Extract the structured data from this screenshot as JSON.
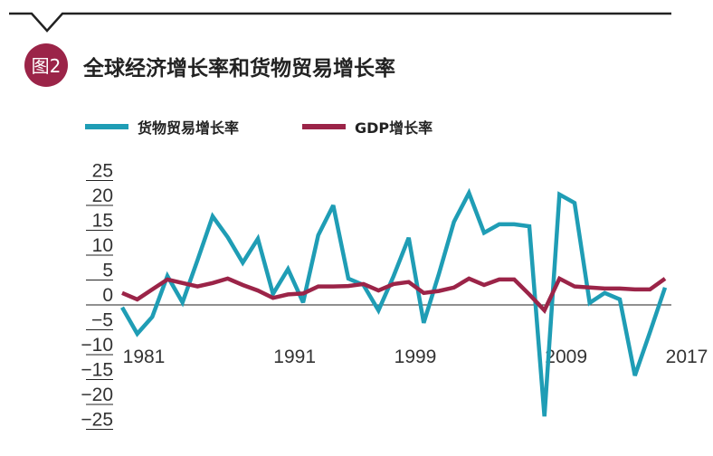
{
  "figure": {
    "badge": "图2",
    "title": "全球经济增长率和货物贸易增长率"
  },
  "chart_data": {
    "type": "line",
    "title": "全球经济增长率和货物贸易增长率",
    "xlabel": "",
    "ylabel": "",
    "x": [
      1981,
      1982,
      1983,
      1984,
      1985,
      1986,
      1987,
      1988,
      1989,
      1990,
      1991,
      1992,
      1993,
      1994,
      1995,
      1996,
      1997,
      1998,
      1999,
      2000,
      2001,
      2002,
      2003,
      2004,
      2005,
      2006,
      2007,
      2008,
      2009,
      2010,
      2011,
      2012,
      2013,
      2014,
      2015,
      2016,
      2017
    ],
    "xticks": [
      "1981",
      "1991",
      "1999",
      "2009",
      "2017"
    ],
    "xtick_values": [
      1981,
      1991,
      1999,
      2009,
      2017
    ],
    "yticks": [
      "25",
      "20",
      "15",
      "10",
      "5",
      "0",
      "−5",
      "−10",
      "−15",
      "−20",
      "−25"
    ],
    "ytick_values": [
      25,
      20,
      15,
      10,
      5,
      0,
      -5,
      -10,
      -15,
      -20,
      -25
    ],
    "ylim": [
      -25,
      25
    ],
    "grid": false,
    "legend_position": "top",
    "series": [
      {
        "name": "货物贸易增长率",
        "color": "#1f9db5",
        "values": [
          -0.5,
          -5.8,
          -2.4,
          5.8,
          0.5,
          9,
          17.8,
          13.6,
          8.5,
          13.3,
          2.2,
          7.2,
          0.5,
          14,
          20,
          5.3,
          4,
          -1.1,
          5.8,
          13.5,
          -3.6,
          6.2,
          16.7,
          22.5,
          14.5,
          16.2,
          16.2,
          15.8,
          -22.4,
          22.2,
          20.5,
          0.4,
          2.4,
          1.1,
          -14.2,
          -5.5,
          3.5
        ]
      },
      {
        "name": "GDP增长率",
        "color": "#9b2448",
        "values": [
          2.4,
          1.1,
          3.1,
          5.1,
          4.4,
          3.7,
          4.4,
          5.3,
          4,
          2.9,
          1.4,
          2.1,
          2.3,
          3.7,
          3.7,
          3.8,
          4.2,
          2.9,
          4.2,
          4.6,
          2.4,
          2.8,
          3.5,
          5.3,
          4,
          5.1,
          5.1,
          2.1,
          -1.1,
          5.3,
          3.7,
          3.5,
          3.3,
          3.3,
          3.1,
          3.1,
          5.3
        ]
      }
    ]
  }
}
